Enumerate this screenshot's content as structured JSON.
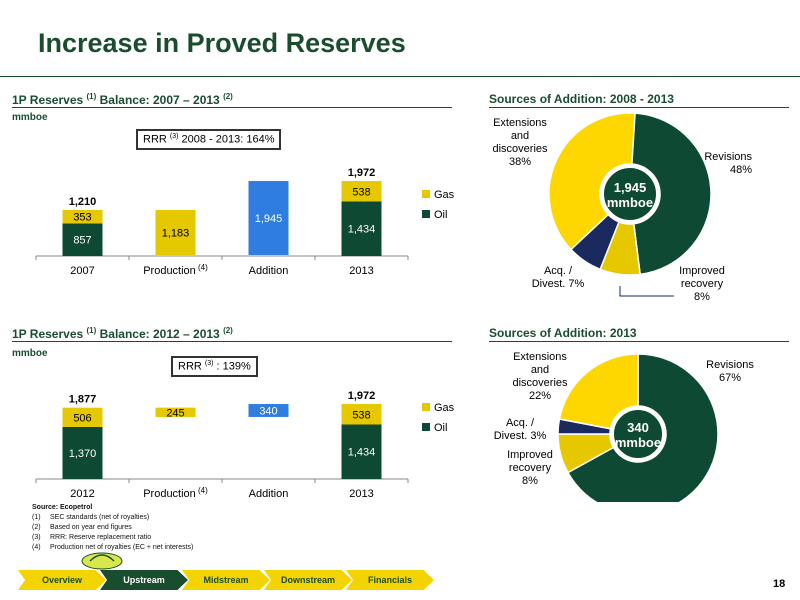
{
  "title": "Increase in Proved Reserves",
  "page_number": "18",
  "colors": {
    "oil": "#0e4a33",
    "gas": "#e6c800",
    "addition": "#2f7de1",
    "primary": "#1a4d2e",
    "yellow": "#ffd700",
    "navy": "#1a2a5e"
  },
  "sections": {
    "s1": {
      "title_a": "1P Reserves ",
      "sup_a": "(1)",
      "title_b": " Balance: 2007 – 2013 ",
      "sup_b": "(2)",
      "unit": "mmboe"
    },
    "s2": {
      "title": "Sources of Addition: 2008 - 2013"
    },
    "s3": {
      "title_a": "1P Reserves ",
      "sup_a": "(1)",
      "title_b": " Balance: 2012 – 2013 ",
      "sup_b": "(2)",
      "unit": "mmboe"
    },
    "s4": {
      "title": "Sources of Addition: 2013"
    }
  },
  "rrr1": {
    "a": "RRR ",
    "sup": "(3)",
    "b": " 2008 - 2013: 164%"
  },
  "rrr2": {
    "a": "RRR ",
    "sup": "(3)",
    "b": " : 139%"
  },
  "footnotes": {
    "source": "Source: Ecopetrol",
    "items": [
      {
        "num": "(1)",
        "text": "SEC standards (net of royalties)"
      },
      {
        "num": "(2)",
        "text": "Based on year end figures"
      },
      {
        "num": "(3)",
        "text": "RRR: Reserve replacement ratio"
      },
      {
        "num": "(4)",
        "text": "Production net of royalties (EC + net interests)"
      }
    ]
  },
  "nav": [
    {
      "label": "Overview",
      "active": false
    },
    {
      "label": "Upstream",
      "active": true
    },
    {
      "label": "Midstream",
      "active": false
    },
    {
      "label": "Downstream",
      "active": false
    },
    {
      "label": "Financials",
      "active": false
    }
  ],
  "chart_data": [
    {
      "type": "bar",
      "categories": [
        "2007",
        "Production",
        "Addition",
        "2013"
      ],
      "category_sups": [
        "",
        "(4)",
        "",
        ""
      ],
      "bars": [
        {
          "kind": "stack",
          "oil": 857,
          "gas": 353,
          "total": 1210,
          "oil_label": "857",
          "gas_label": "353",
          "total_label": "1,210"
        },
        {
          "kind": "float",
          "value": 1183,
          "label": "1,183",
          "color": "gas"
        },
        {
          "kind": "float",
          "value": 1945,
          "label": "1,945",
          "color": "addition"
        },
        {
          "kind": "stack",
          "oil": 1434,
          "gas": 538,
          "total": 1972,
          "oil_label": "1,434",
          "gas_label": "538",
          "total_label": "1,972"
        }
      ],
      "legend": [
        {
          "name": "Gas",
          "color": "gas"
        },
        {
          "name": "Oil",
          "color": "oil"
        }
      ],
      "legend_position": "right"
    },
    {
      "type": "pie",
      "center_value": "1,945",
      "center_unit": "mmboe",
      "slices": [
        {
          "name": "Revisions",
          "pct": 48,
          "label_a": "Revisions",
          "label_b": "48%",
          "color": "#0e4a33"
        },
        {
          "name": "Improved recovery",
          "pct": 8,
          "label_a": "Improved",
          "label_b": "recovery",
          "label_c": "8%",
          "color": "#e6c800"
        },
        {
          "name": "Acq. / Divest.",
          "pct": 7,
          "label_a": "Acq. /",
          "label_b": "Divest. 7%",
          "color": "#1a2a5e"
        },
        {
          "name": "Extensions and discoveries",
          "pct": 38,
          "label_a": "Extensions",
          "label_b": "and",
          "label_c": "discoveries",
          "label_d": "38%",
          "color": "#ffd700"
        }
      ]
    },
    {
      "type": "bar",
      "categories": [
        "2012",
        "Production",
        "Addition",
        "2013"
      ],
      "category_sups": [
        "",
        "(4)",
        "",
        ""
      ],
      "bars": [
        {
          "kind": "stack",
          "oil": 1370,
          "gas": 506,
          "total": 1877,
          "oil_label": "1,370",
          "gas_label": "506",
          "total_label": "1,877"
        },
        {
          "kind": "float",
          "value": 245,
          "label": "245",
          "color": "gas"
        },
        {
          "kind": "float",
          "value": 340,
          "label": "340",
          "color": "addition"
        },
        {
          "kind": "stack",
          "oil": 1434,
          "gas": 538,
          "total": 1972,
          "oil_label": "1,434",
          "gas_label": "538",
          "total_label": "1,972"
        }
      ],
      "legend": [
        {
          "name": "Gas",
          "color": "gas"
        },
        {
          "name": "Oil",
          "color": "oil"
        }
      ],
      "legend_position": "right"
    },
    {
      "type": "pie",
      "center_value": "340",
      "center_unit": "mmboe",
      "slices": [
        {
          "name": "Revisions",
          "pct": 67,
          "label_a": "Revisions",
          "label_b": "67%",
          "color": "#0e4a33"
        },
        {
          "name": "Improved recovery",
          "pct": 8,
          "label_a": "Improved",
          "label_b": "recovery",
          "label_c": "8%",
          "color": "#e6c800"
        },
        {
          "name": "Acq. / Divest.",
          "pct": 3,
          "label_a": "Acq. /",
          "label_b": "Divest.  3%",
          "color": "#1a2a5e"
        },
        {
          "name": "Extensions and discoveries",
          "pct": 22,
          "label_a": "Extensions",
          "label_b": "and",
          "label_c": "discoveries",
          "label_d": "22%",
          "color": "#ffd700"
        }
      ]
    }
  ]
}
